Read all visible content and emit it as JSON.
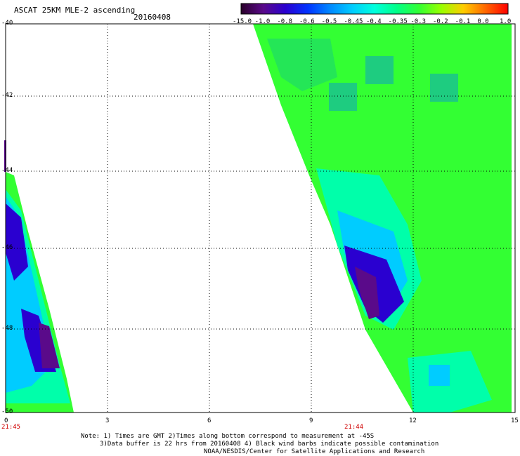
{
  "header": {
    "title": "ASCAT 25KM MLE-2 ascending",
    "date": "20160408"
  },
  "colorbar": {
    "labels": [
      "-15.0",
      "-1.0",
      "-0.8",
      "-0.6",
      "-0.5",
      "-0.45",
      "-0.4",
      "-0.35",
      "-0.3",
      "-0.2",
      "-0.1",
      "0.0",
      "1.0"
    ],
    "colors": [
      "#2a002a",
      "#5a0a8a",
      "#2a00d0",
      "#0033ff",
      "#0088ff",
      "#00ccff",
      "#00ffdd",
      "#00ff88",
      "#33ff33",
      "#99ff00",
      "#ffcc00",
      "#ff6600",
      "#ff0000"
    ]
  },
  "axes": {
    "y_ticks": [
      "-40",
      "-42",
      "-44",
      "-46",
      "-48",
      "-50"
    ],
    "x_ticks": [
      "0",
      "3",
      "6",
      "9",
      "12",
      "15"
    ],
    "time_labels": [
      "21:45",
      "21:44"
    ]
  },
  "notes": {
    "line1": "Note: 1) Times are GMT 2)Times along bottom correspond to measurement at -45S",
    "line2": "3)Data buffer is 22 hrs from 20160408 4) Black wind barbs indicate possible contamination",
    "line3": "NOAA/NESDIS/Center for Satellite Applications and Research"
  }
}
